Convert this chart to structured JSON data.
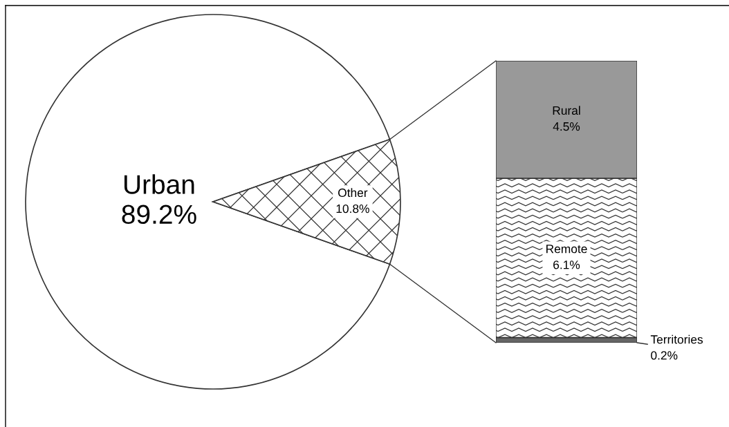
{
  "chart_data": [
    {
      "type": "pie",
      "categories": [
        "Urban",
        "Other"
      ],
      "values": [
        89.2,
        10.8
      ],
      "colors": [
        "#ffffff",
        "#333333"
      ],
      "value_labels": [
        "89.2%",
        "10.8%"
      ]
    },
    {
      "type": "bar",
      "stacked": true,
      "categories": [
        null
      ],
      "series": [
        {
          "name": "Territories",
          "color": "#666666",
          "values": [
            0.2
          ],
          "value_labels": [
            "0.2%"
          ]
        },
        {
          "name": "Remote",
          "color": "#333333",
          "values": [
            6.1
          ],
          "value_labels": [
            "6.1%"
          ]
        },
        {
          "name": "Rural",
          "color": "#999999",
          "values": [
            4.5
          ],
          "value_labels": [
            "4.5%"
          ]
        }
      ],
      "tick_labels": false
    }
  ]
}
